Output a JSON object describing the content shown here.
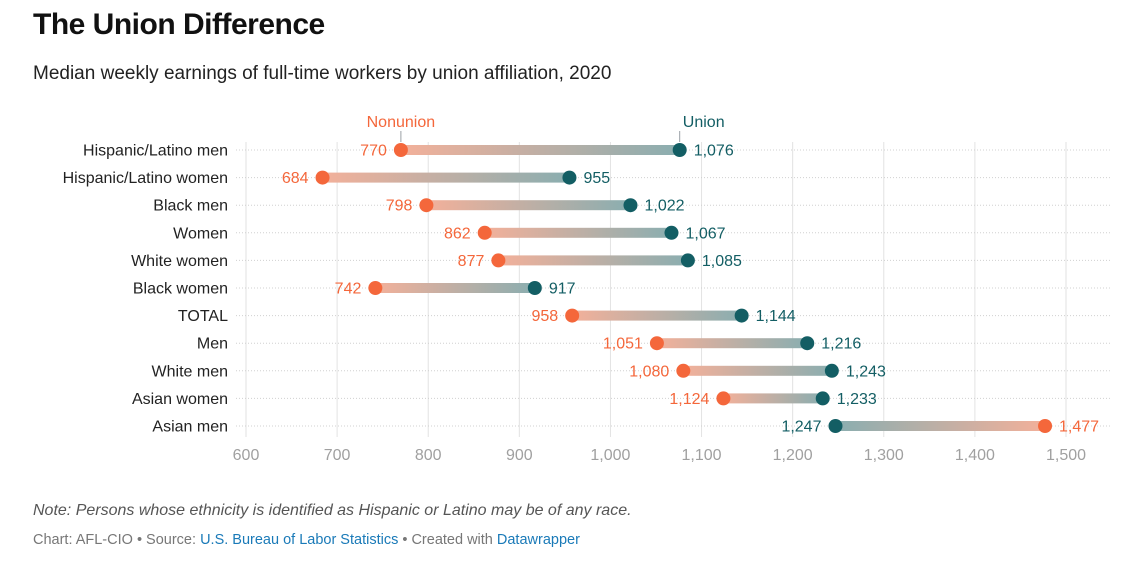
{
  "header": {
    "title": "The Union Difference",
    "subtitle": "Median weekly earnings of full-time workers by union affiliation, 2020"
  },
  "footer": {
    "note": "Note: Persons whose ethnicity is identified as Hispanic or Latino may be of any race.",
    "chart_prefix": "Chart: AFL-CIO • Source: ",
    "source_link": "U.S. Bureau of Labor Statistics",
    "created_prefix": " • Created with ",
    "created_link": "Datawrapper"
  },
  "colors": {
    "nonunion": "#f4673b",
    "union": "#135e64",
    "nonunion_bar": "#f3b09a",
    "union_bar": "#8aaeb0",
    "grid": "#e2e2e2",
    "tick": "#a0a0a0"
  },
  "chart_data": {
    "type": "dot-range",
    "title": "The Union Difference",
    "subtitle": "Median weekly earnings of full-time workers by union affiliation, 2020",
    "xlabel": "",
    "ylabel": "",
    "xlim": [
      600,
      1500
    ],
    "xticks": [
      600,
      700,
      800,
      900,
      1000,
      1100,
      1200,
      1300,
      1400,
      1500
    ],
    "xtick_labels": [
      "600",
      "700",
      "800",
      "900",
      "1,000",
      "1,100",
      "1,200",
      "1,300",
      "1,400",
      "1,500"
    ],
    "grid": true,
    "legend": {
      "placement": "top",
      "entries": [
        "Nonunion",
        "Union"
      ]
    },
    "categories": [
      "Hispanic/Latino men",
      "Hispanic/Latino women",
      "Black men",
      "Women",
      "White women",
      "Black women",
      "TOTAL",
      "Men",
      "White men",
      "Asian women",
      "Asian men"
    ],
    "series": [
      {
        "name": "Nonunion",
        "values": [
          770,
          684,
          798,
          862,
          877,
          742,
          958,
          1051,
          1080,
          1124,
          1477
        ],
        "labels": [
          "770",
          "684",
          "798",
          "862",
          "877",
          "742",
          "958",
          "1,051",
          "1,080",
          "1,124",
          "1,477"
        ]
      },
      {
        "name": "Union",
        "values": [
          1076,
          955,
          1022,
          1067,
          1085,
          917,
          1144,
          1216,
          1243,
          1233,
          1247
        ],
        "labels": [
          "1,076",
          "955",
          "1,022",
          "1,067",
          "1,085",
          "917",
          "1,144",
          "1,216",
          "1,243",
          "1,233",
          "1,247"
        ]
      }
    ]
  }
}
